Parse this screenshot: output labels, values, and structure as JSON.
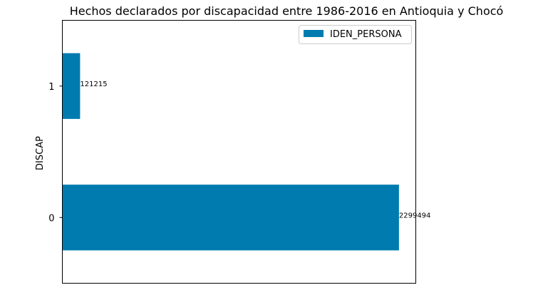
{
  "chart_data": {
    "type": "bar",
    "orientation": "horizontal",
    "title": "Hechos declarados por discapacidad entre 1986-2016 en Antioquia y Chocó",
    "xlabel": "",
    "ylabel": "DISCAP",
    "categories": [
      "0",
      "1"
    ],
    "series": [
      {
        "name": "IDEN_PERSONA",
        "values": [
          2299494,
          121215
        ],
        "color": "#007bb0"
      }
    ],
    "data_labels": [
      "2299494",
      "121215"
    ],
    "xlim": [
      0,
      2414469
    ],
    "x_ticks_visible": false,
    "grid": false,
    "legend": {
      "position": "top-right",
      "entries": [
        "IDEN_PERSONA"
      ]
    }
  }
}
